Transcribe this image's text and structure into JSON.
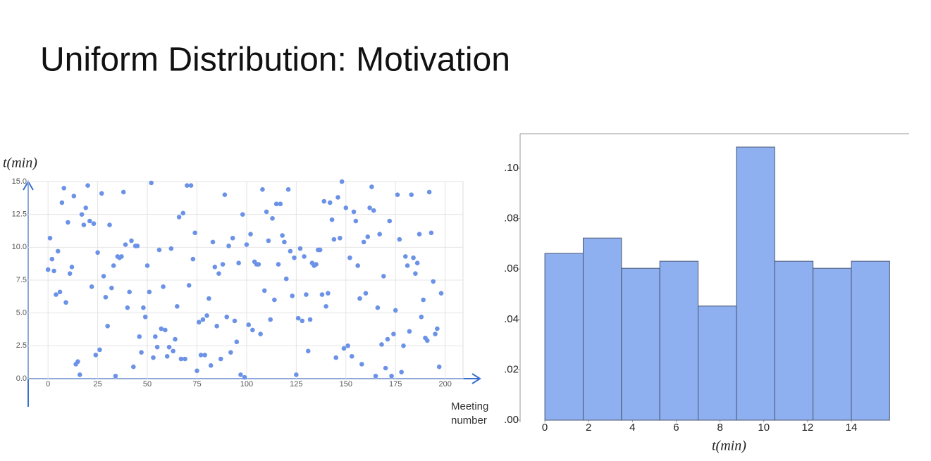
{
  "title": "Uniform Distribution: Motivation",
  "chart_data": [
    {
      "type": "scatter",
      "y_label": "t(min)",
      "x_label": "Meeting number",
      "color": "#6b92e6",
      "grid": true,
      "xlim": [
        -10,
        209
      ],
      "ylim": [
        0,
        15
      ],
      "xticks": [
        0,
        25,
        50,
        75,
        100,
        125,
        150,
        175,
        200
      ],
      "yticks": [
        {
          "value": 0,
          "label": "0.0"
        },
        {
          "value": 2.5,
          "label": "2.5"
        },
        {
          "value": 5,
          "label": "5.0"
        },
        {
          "value": 7.5,
          "label": "7.5"
        },
        {
          "value": 10,
          "label": "10.0"
        },
        {
          "value": 12.5,
          "label": "12.5"
        },
        {
          "value": 15,
          "label": "15.0"
        }
      ],
      "x": [
        0,
        1,
        2,
        3,
        4,
        5,
        6,
        7,
        8,
        9,
        10,
        11,
        12,
        13,
        14,
        15,
        16,
        17,
        18,
        19,
        20,
        21,
        22,
        23,
        24,
        25,
        26,
        27,
        28,
        29,
        30,
        31,
        32,
        33,
        34,
        35,
        36,
        37,
        38,
        39,
        40,
        41,
        42,
        43,
        44,
        45,
        46,
        47,
        48,
        49,
        50,
        51,
        52,
        53,
        54,
        55,
        56,
        57,
        58,
        59,
        60,
        61,
        62,
        63,
        64,
        65,
        66,
        67,
        68,
        69,
        70,
        71,
        72,
        73,
        74,
        75,
        76,
        77,
        78,
        79,
        80,
        81,
        82,
        83,
        84,
        85,
        86,
        87,
        88,
        89,
        90,
        91,
        92,
        93,
        94,
        95,
        96,
        97,
        98,
        99,
        100,
        101,
        102,
        103,
        104,
        105,
        106,
        107,
        108,
        109,
        110,
        111,
        112,
        113,
        114,
        115,
        116,
        117,
        118,
        119,
        120,
        121,
        122,
        123,
        124,
        125,
        126,
        127,
        128,
        129,
        130,
        131,
        132,
        133,
        134,
        135,
        136,
        137,
        138,
        139,
        140,
        141,
        142,
        143,
        144,
        145,
        146,
        147,
        148,
        149,
        150,
        151,
        152,
        153,
        154,
        155,
        156,
        157,
        158,
        159,
        160,
        161,
        162,
        163,
        164,
        165,
        166,
        167,
        168,
        169,
        170,
        171,
        172,
        173,
        174,
        175,
        176,
        177,
        178,
        179,
        180,
        181,
        182,
        183,
        184,
        185,
        186,
        187,
        188,
        189,
        190,
        191,
        192,
        193,
        194,
        195,
        196,
        197,
        198
      ],
      "values": [
        8.3,
        10.7,
        9.1,
        8.2,
        6.4,
        9.7,
        6.6,
        13.4,
        14.5,
        5.8,
        11.9,
        8.0,
        8.5,
        13.9,
        1.1,
        1.3,
        0.3,
        12.5,
        11.7,
        13.0,
        14.7,
        12.0,
        7.0,
        11.8,
        1.8,
        9.6,
        2.2,
        14.1,
        7.8,
        6.2,
        4.0,
        11.7,
        6.9,
        8.6,
        0.2,
        9.3,
        9.2,
        9.3,
        14.2,
        10.2,
        5.4,
        6.6,
        10.5,
        0.9,
        10.1,
        10.1,
        3.2,
        2.0,
        5.4,
        4.7,
        8.6,
        6.6,
        14.9,
        1.6,
        3.2,
        2.4,
        9.8,
        3.8,
        7.0,
        3.7,
        1.7,
        2.4,
        9.9,
        2.1,
        3.0,
        5.5,
        12.3,
        1.5,
        12.6,
        1.5,
        14.7,
        7.1,
        14.7,
        9.1,
        11.1,
        0.6,
        4.3,
        1.8,
        4.5,
        1.8,
        4.8,
        6.1,
        1.0,
        10.4,
        8.5,
        4.0,
        8.0,
        1.5,
        8.7,
        14.0,
        4.7,
        10.1,
        2.0,
        10.7,
        4.4,
        2.8,
        8.8,
        0.3,
        12.5,
        0.1,
        10.2,
        4.1,
        11.0,
        3.7,
        8.9,
        8.7,
        8.7,
        3.4,
        14.4,
        6.7,
        12.7,
        10.5,
        4.5,
        12.2,
        6.0,
        13.3,
        8.7,
        13.3,
        10.9,
        10.4,
        7.6,
        14.4,
        9.7,
        6.3,
        9.2,
        0.3,
        4.6,
        9.9,
        4.4,
        9.3,
        6.4,
        2.1,
        4.5,
        8.8,
        8.6,
        8.7,
        9.8,
        9.8,
        6.4,
        13.5,
        5.5,
        6.5,
        13.4,
        12.1,
        10.6,
        1.6,
        13.8,
        10.7,
        15.0,
        2.3,
        13.0,
        2.5,
        9.2,
        1.7,
        12.7,
        12.0,
        8.6,
        6.1,
        1.1,
        10.4,
        6.5,
        10.8,
        13.0,
        14.6,
        12.8,
        0.2,
        5.4,
        11.0,
        2.6,
        7.8,
        0.8,
        3.0,
        12.0,
        0.2,
        3.4,
        5.2,
        14.0,
        10.6,
        0.5,
        2.5,
        9.3,
        8.6,
        3.6,
        14.0,
        9.2,
        8.0,
        8.8,
        11.0,
        4.7,
        6.0,
        3.1,
        2.9,
        14.2,
        11.1,
        7.4,
        3.4,
        3.8,
        0.9,
        6.5
      ]
    },
    {
      "type": "histogram",
      "x_label": "t(min)",
      "color": "#8eaff0",
      "edge_color": "#4b5872",
      "xlim": [
        -1.13,
        16.64
      ],
      "ylim": [
        0,
        0.1137
      ],
      "xticks": [
        0,
        2,
        4,
        6,
        8,
        10,
        12,
        14
      ],
      "yticks": [
        {
          "value": 0,
          "label": ".00"
        },
        {
          "value": 0.02,
          "label": ".02"
        },
        {
          "value": 0.04,
          "label": ".04"
        },
        {
          "value": 0.06,
          "label": ".06"
        },
        {
          "value": 0.08,
          "label": ".08"
        },
        {
          "value": 0.1,
          "label": ".10"
        }
      ],
      "bins": [
        0,
        1.75,
        3.5,
        5.25,
        7,
        8.75,
        10.5,
        12.25,
        14,
        15.75
      ],
      "values": [
        0.0662,
        0.0723,
        0.0603,
        0.0631,
        0.0453,
        0.1084,
        0.0631,
        0.0603,
        0.0631
      ]
    }
  ]
}
